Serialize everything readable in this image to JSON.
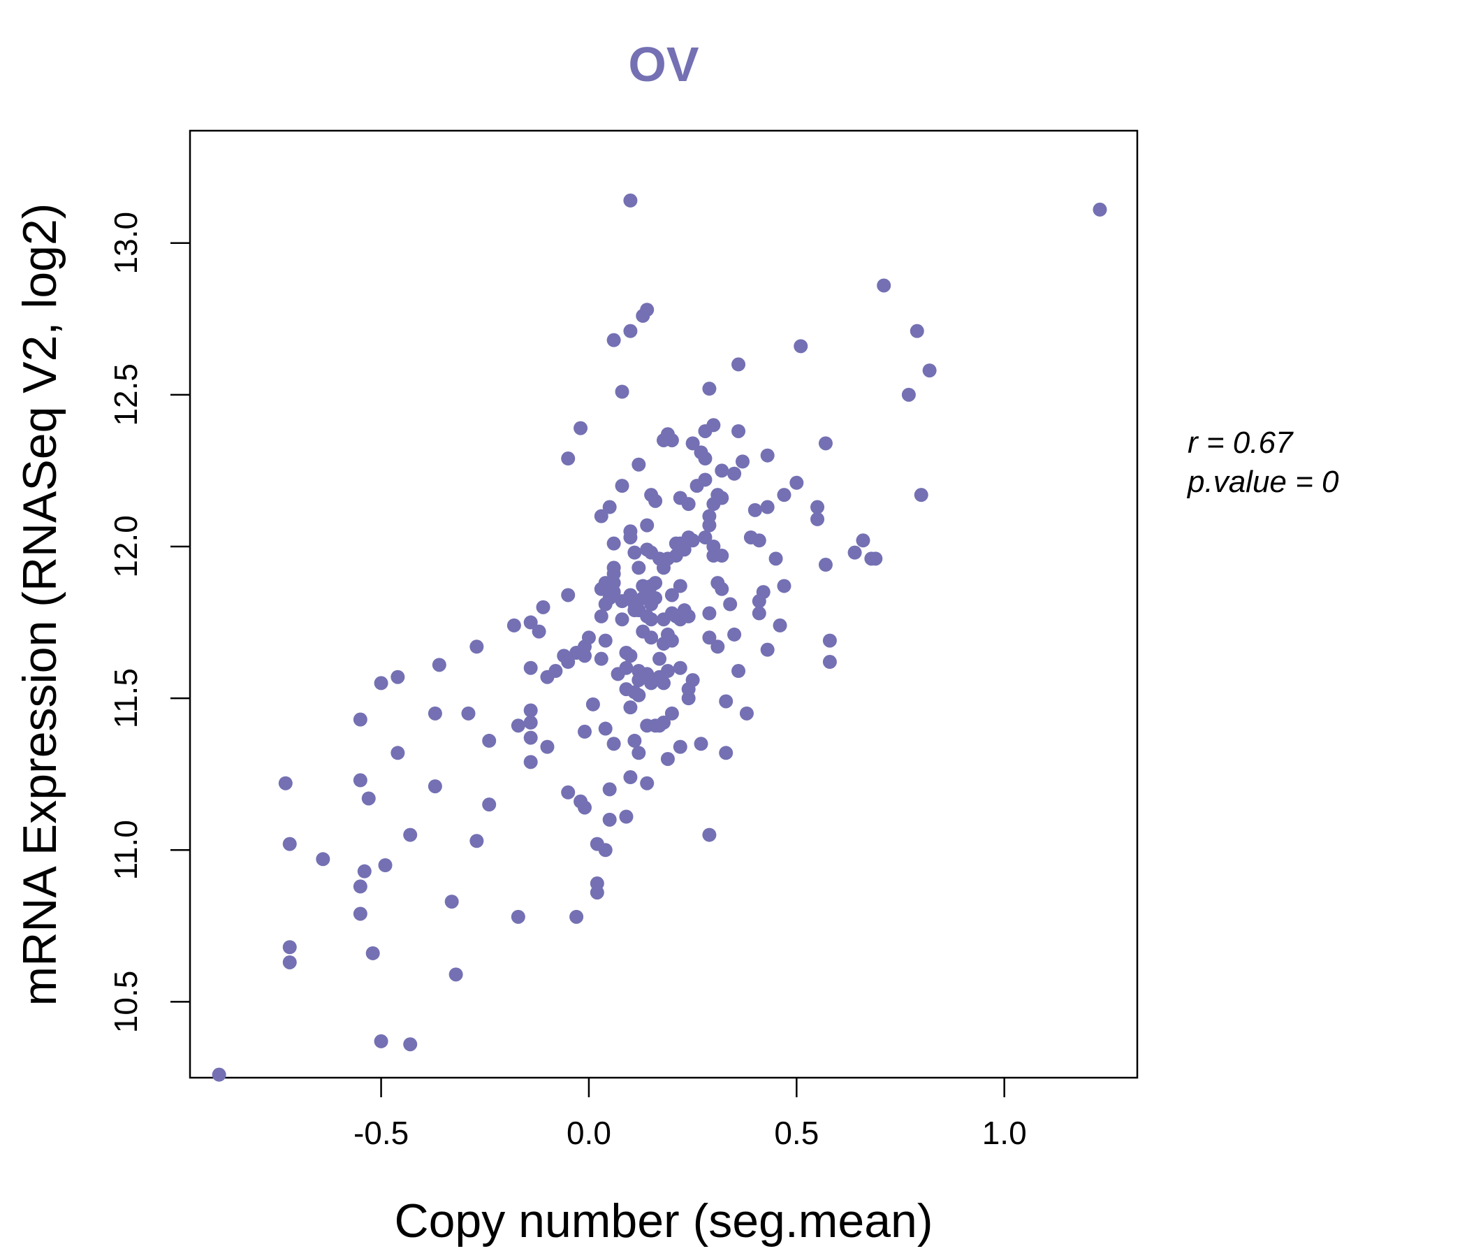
{
  "chart_data": {
    "type": "scatter",
    "title": "OV",
    "xlabel": "Copy number (seg.mean)",
    "ylabel": "mRNA Expression (RNASeq V2, log2)",
    "xlim": [
      -0.96,
      1.32
    ],
    "ylim": [
      10.25,
      13.37
    ],
    "xticks": [
      -0.5,
      0.0,
      0.5,
      1.0
    ],
    "xtick_labels": [
      "-0.5",
      "0.0",
      "0.5",
      "1.0"
    ],
    "yticks": [
      10.5,
      11.0,
      11.5,
      12.0,
      12.5,
      13.0
    ],
    "ytick_labels": [
      "10.5",
      "11.0",
      "11.5",
      "12.0",
      "12.5",
      "13.0"
    ],
    "grid": false,
    "legend": "none",
    "annotations": {
      "r": "r = 0.67",
      "p": "p.value = 0"
    },
    "colors": {
      "points": "#7470b3",
      "title": "#7470b3",
      "axes": "#000000"
    },
    "points": [
      [
        -0.89,
        10.26
      ],
      [
        -0.73,
        11.22
      ],
      [
        -0.72,
        11.02
      ],
      [
        -0.72,
        10.68
      ],
      [
        -0.72,
        10.63
      ],
      [
        -0.64,
        10.97
      ],
      [
        -0.55,
        11.43
      ],
      [
        -0.55,
        11.23
      ],
      [
        -0.55,
        10.88
      ],
      [
        -0.55,
        10.79
      ],
      [
        -0.54,
        10.93
      ],
      [
        -0.53,
        11.17
      ],
      [
        -0.52,
        10.66
      ],
      [
        -0.5,
        11.55
      ],
      [
        -0.5,
        10.37
      ],
      [
        -0.49,
        10.95
      ],
      [
        -0.46,
        11.57
      ],
      [
        -0.46,
        11.32
      ],
      [
        -0.43,
        11.05
      ],
      [
        -0.43,
        10.36
      ],
      [
        -0.37,
        11.45
      ],
      [
        -0.36,
        11.61
      ],
      [
        -0.37,
        11.21
      ],
      [
        -0.33,
        10.83
      ],
      [
        -0.32,
        10.59
      ],
      [
        -0.29,
        11.45
      ],
      [
        -0.27,
        11.67
      ],
      [
        -0.27,
        11.03
      ],
      [
        -0.24,
        11.15
      ],
      [
        -0.24,
        11.36
      ],
      [
        -0.18,
        11.74
      ],
      [
        -0.17,
        11.41
      ],
      [
        -0.17,
        10.78
      ],
      [
        -0.14,
        11.75
      ],
      [
        -0.14,
        11.6
      ],
      [
        -0.14,
        11.46
      ],
      [
        -0.14,
        11.42
      ],
      [
        -0.14,
        11.37
      ],
      [
        -0.14,
        11.29
      ],
      [
        -0.12,
        11.72
      ],
      [
        -0.11,
        11.8
      ],
      [
        -0.1,
        11.57
      ],
      [
        -0.1,
        11.34
      ],
      [
        -0.08,
        11.59
      ],
      [
        -0.06,
        11.64
      ],
      [
        -0.05,
        11.62
      ],
      [
        -0.05,
        11.84
      ],
      [
        -0.05,
        12.29
      ],
      [
        -0.05,
        11.19
      ],
      [
        -0.03,
        11.65
      ],
      [
        -0.03,
        10.78
      ],
      [
        -0.02,
        12.39
      ],
      [
        -0.02,
        11.16
      ],
      [
        -0.01,
        11.64
      ],
      [
        -0.01,
        11.67
      ],
      [
        -0.01,
        11.14
      ],
      [
        -0.01,
        11.39
      ],
      [
        0.0,
        11.7
      ],
      [
        0.01,
        11.48
      ],
      [
        0.02,
        10.89
      ],
      [
        0.02,
        10.86
      ],
      [
        0.02,
        11.02
      ],
      [
        0.03,
        11.63
      ],
      [
        0.03,
        11.77
      ],
      [
        0.03,
        11.86
      ],
      [
        0.03,
        12.1
      ],
      [
        0.04,
        11.88
      ],
      [
        0.04,
        11.81
      ],
      [
        0.04,
        11.69
      ],
      [
        0.04,
        11.4
      ],
      [
        0.04,
        11.0
      ],
      [
        0.05,
        11.2
      ],
      [
        0.05,
        11.1
      ],
      [
        0.05,
        11.83
      ],
      [
        0.05,
        12.13
      ],
      [
        0.06,
        11.93
      ],
      [
        0.06,
        11.91
      ],
      [
        0.06,
        11.88
      ],
      [
        0.06,
        11.85
      ],
      [
        0.06,
        12.01
      ],
      [
        0.06,
        12.68
      ],
      [
        0.06,
        11.35
      ],
      [
        0.07,
        11.58
      ],
      [
        0.08,
        11.82
      ],
      [
        0.08,
        11.76
      ],
      [
        0.08,
        12.2
      ],
      [
        0.08,
        12.51
      ],
      [
        0.09,
        11.6
      ],
      [
        0.09,
        11.65
      ],
      [
        0.09,
        11.53
      ],
      [
        0.09,
        11.11
      ],
      [
        0.1,
        11.84
      ],
      [
        0.1,
        11.64
      ],
      [
        0.1,
        11.47
      ],
      [
        0.1,
        12.03
      ],
      [
        0.1,
        12.05
      ],
      [
        0.1,
        12.71
      ],
      [
        0.1,
        13.14
      ],
      [
        0.1,
        11.24
      ],
      [
        0.11,
        11.81
      ],
      [
        0.11,
        11.79
      ],
      [
        0.11,
        11.52
      ],
      [
        0.11,
        11.36
      ],
      [
        0.11,
        11.98
      ],
      [
        0.12,
        11.79
      ],
      [
        0.12,
        11.59
      ],
      [
        0.12,
        11.56
      ],
      [
        0.12,
        11.51
      ],
      [
        0.12,
        11.32
      ],
      [
        0.12,
        11.93
      ],
      [
        0.12,
        12.27
      ],
      [
        0.13,
        11.83
      ],
      [
        0.13,
        11.72
      ],
      [
        0.13,
        11.87
      ],
      [
        0.13,
        12.76
      ],
      [
        0.14,
        11.85
      ],
      [
        0.14,
        11.77
      ],
      [
        0.14,
        11.58
      ],
      [
        0.14,
        11.41
      ],
      [
        0.14,
        11.99
      ],
      [
        0.14,
        12.07
      ],
      [
        0.14,
        12.78
      ],
      [
        0.14,
        11.22
      ],
      [
        0.15,
        11.81
      ],
      [
        0.15,
        11.76
      ],
      [
        0.15,
        11.7
      ],
      [
        0.15,
        11.55
      ],
      [
        0.15,
        11.87
      ],
      [
        0.15,
        11.98
      ],
      [
        0.15,
        12.17
      ],
      [
        0.16,
        11.83
      ],
      [
        0.16,
        11.41
      ],
      [
        0.16,
        11.88
      ],
      [
        0.16,
        12.15
      ],
      [
        0.17,
        11.63
      ],
      [
        0.17,
        11.57
      ],
      [
        0.17,
        11.41
      ],
      [
        0.17,
        11.96
      ],
      [
        0.18,
        11.68
      ],
      [
        0.18,
        11.55
      ],
      [
        0.18,
        11.42
      ],
      [
        0.18,
        11.76
      ],
      [
        0.18,
        11.93
      ],
      [
        0.18,
        12.35
      ],
      [
        0.19,
        11.71
      ],
      [
        0.19,
        11.59
      ],
      [
        0.19,
        11.96
      ],
      [
        0.19,
        12.37
      ],
      [
        0.19,
        11.3
      ],
      [
        0.2,
        11.69
      ],
      [
        0.2,
        11.45
      ],
      [
        0.2,
        11.84
      ],
      [
        0.2,
        11.78
      ],
      [
        0.2,
        12.35
      ],
      [
        0.21,
        11.77
      ],
      [
        0.21,
        11.97
      ],
      [
        0.21,
        12.01
      ],
      [
        0.22,
        11.76
      ],
      [
        0.22,
        11.6
      ],
      [
        0.22,
        11.87
      ],
      [
        0.22,
        12.01
      ],
      [
        0.22,
        12.16
      ],
      [
        0.22,
        11.34
      ],
      [
        0.23,
        11.79
      ],
      [
        0.23,
        11.99
      ],
      [
        0.24,
        11.77
      ],
      [
        0.24,
        11.53
      ],
      [
        0.24,
        11.5
      ],
      [
        0.24,
        12.03
      ],
      [
        0.24,
        12.14
      ],
      [
        0.25,
        11.56
      ],
      [
        0.25,
        12.02
      ],
      [
        0.25,
        12.34
      ],
      [
        0.26,
        12.2
      ],
      [
        0.27,
        12.31
      ],
      [
        0.27,
        11.35
      ],
      [
        0.28,
        12.38
      ],
      [
        0.28,
        12.29
      ],
      [
        0.28,
        12.03
      ],
      [
        0.28,
        12.22
      ],
      [
        0.29,
        12.52
      ],
      [
        0.29,
        11.78
      ],
      [
        0.29,
        11.7
      ],
      [
        0.29,
        12.1
      ],
      [
        0.29,
        12.07
      ],
      [
        0.29,
        11.05
      ],
      [
        0.3,
        12.14
      ],
      [
        0.3,
        12.0
      ],
      [
        0.3,
        11.97
      ],
      [
        0.3,
        12.4
      ],
      [
        0.31,
        11.67
      ],
      [
        0.31,
        12.17
      ],
      [
        0.31,
        11.88
      ],
      [
        0.32,
        11.86
      ],
      [
        0.32,
        12.25
      ],
      [
        0.32,
        12.16
      ],
      [
        0.32,
        11.97
      ],
      [
        0.33,
        11.49
      ],
      [
        0.33,
        11.32
      ],
      [
        0.34,
        11.81
      ],
      [
        0.35,
        11.71
      ],
      [
        0.35,
        12.24
      ],
      [
        0.36,
        12.38
      ],
      [
        0.36,
        12.6
      ],
      [
        0.36,
        11.59
      ],
      [
        0.37,
        12.28
      ],
      [
        0.38,
        11.45
      ],
      [
        0.39,
        12.03
      ],
      [
        0.4,
        12.12
      ],
      [
        0.41,
        11.82
      ],
      [
        0.41,
        11.78
      ],
      [
        0.41,
        12.02
      ],
      [
        0.42,
        11.85
      ],
      [
        0.43,
        12.13
      ],
      [
        0.43,
        12.3
      ],
      [
        0.43,
        11.66
      ],
      [
        0.45,
        11.96
      ],
      [
        0.46,
        11.74
      ],
      [
        0.47,
        11.87
      ],
      [
        0.47,
        12.17
      ],
      [
        0.5,
        12.21
      ],
      [
        0.51,
        12.66
      ],
      [
        0.55,
        12.09
      ],
      [
        0.55,
        12.13
      ],
      [
        0.57,
        12.34
      ],
      [
        0.57,
        11.94
      ],
      [
        0.58,
        11.69
      ],
      [
        0.58,
        11.62
      ],
      [
        0.64,
        11.98
      ],
      [
        0.66,
        12.02
      ],
      [
        0.68,
        11.96
      ],
      [
        0.69,
        11.96
      ],
      [
        0.71,
        12.86
      ],
      [
        0.77,
        12.5
      ],
      [
        0.79,
        12.71
      ],
      [
        0.8,
        12.17
      ],
      [
        0.82,
        12.58
      ],
      [
        1.23,
        13.11
      ]
    ]
  }
}
